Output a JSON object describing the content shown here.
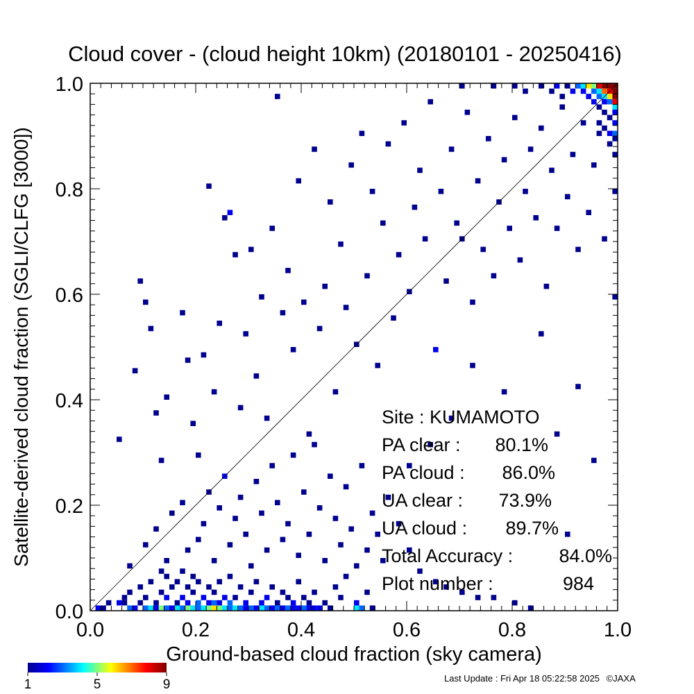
{
  "chart_data": {
    "type": "heatmap",
    "title": "Cloud cover - (cloud height 10km)  (20180101 - 20250416)",
    "xlabel": "Ground-based cloud fraction (sky camera)",
    "ylabel": "Satellite-derived cloud fraction (SGLI/CLFG [3000])",
    "xlim": [
      0.0,
      1.0
    ],
    "ylim": [
      0.0,
      1.0
    ],
    "xticks": [
      "0.0",
      "0.2",
      "0.4",
      "0.6",
      "0.8",
      "1.0"
    ],
    "yticks": [
      "0.0",
      "0.2",
      "0.4",
      "0.6",
      "0.8",
      "1.0"
    ],
    "bin_size": 0.01,
    "reference_line": "1:1 diagonal",
    "colorbar": {
      "min": 1,
      "max": 9,
      "tick_labels": [
        "1",
        "5",
        "9"
      ],
      "colors": [
        "#00008f",
        "#0000ff",
        "#00ffff",
        "#ffff00",
        "#ff0000",
        "#800000"
      ]
    },
    "cells": [
      [
        0.01,
        0.0,
        2
      ],
      [
        0.02,
        0.0,
        1
      ],
      [
        0.03,
        0.01,
        1
      ],
      [
        0.05,
        0.01,
        2
      ],
      [
        0.06,
        0.01,
        1
      ],
      [
        0.06,
        0.02,
        1
      ],
      [
        0.07,
        0.0,
        3
      ],
      [
        0.07,
        0.03,
        1
      ],
      [
        0.08,
        0.0,
        2
      ],
      [
        0.09,
        0.01,
        1
      ],
      [
        0.09,
        0.04,
        1
      ],
      [
        0.1,
        0.0,
        3
      ],
      [
        0.1,
        0.02,
        1
      ],
      [
        0.11,
        0.0,
        4
      ],
      [
        0.11,
        0.05,
        1
      ],
      [
        0.12,
        0.01,
        1
      ],
      [
        0.12,
        0.0,
        2
      ],
      [
        0.13,
        0.0,
        5
      ],
      [
        0.13,
        0.03,
        1
      ],
      [
        0.13,
        0.07,
        1
      ],
      [
        0.14,
        0.0,
        3
      ],
      [
        0.14,
        0.02,
        2
      ],
      [
        0.14,
        0.06,
        1
      ],
      [
        0.15,
        0.0,
        2
      ],
      [
        0.15,
        0.04,
        1
      ],
      [
        0.16,
        0.0,
        4
      ],
      [
        0.16,
        0.01,
        1
      ],
      [
        0.16,
        0.05,
        1
      ],
      [
        0.17,
        0.0,
        3
      ],
      [
        0.17,
        0.02,
        2
      ],
      [
        0.17,
        0.07,
        1
      ],
      [
        0.18,
        0.0,
        5
      ],
      [
        0.18,
        0.01,
        2
      ],
      [
        0.18,
        0.04,
        1
      ],
      [
        0.19,
        0.0,
        4
      ],
      [
        0.19,
        0.03,
        1
      ],
      [
        0.19,
        0.06,
        1
      ],
      [
        0.2,
        0.0,
        3
      ],
      [
        0.2,
        0.01,
        3
      ],
      [
        0.2,
        0.05,
        1
      ],
      [
        0.21,
        0.0,
        4
      ],
      [
        0.21,
        0.02,
        2
      ],
      [
        0.22,
        0.0,
        5
      ],
      [
        0.22,
        0.01,
        2
      ],
      [
        0.22,
        0.04,
        1
      ],
      [
        0.23,
        0.0,
        6
      ],
      [
        0.23,
        0.01,
        3
      ],
      [
        0.23,
        0.03,
        1
      ],
      [
        0.24,
        0.0,
        5
      ],
      [
        0.24,
        0.01,
        2
      ],
      [
        0.24,
        0.05,
        1
      ],
      [
        0.25,
        0.0,
        4
      ],
      [
        0.25,
        0.02,
        2
      ],
      [
        0.26,
        0.0,
        3
      ],
      [
        0.26,
        0.01,
        3
      ],
      [
        0.26,
        0.06,
        1
      ],
      [
        0.27,
        0.0,
        4
      ],
      [
        0.27,
        0.02,
        1
      ],
      [
        0.28,
        0.0,
        3
      ],
      [
        0.28,
        0.04,
        1
      ],
      [
        0.29,
        0.0,
        2
      ],
      [
        0.29,
        0.01,
        2
      ],
      [
        0.3,
        0.0,
        3
      ],
      [
        0.3,
        0.03,
        1
      ],
      [
        0.31,
        0.0,
        2
      ],
      [
        0.31,
        0.05,
        1
      ],
      [
        0.32,
        0.0,
        4
      ],
      [
        0.32,
        0.01,
        2
      ],
      [
        0.33,
        0.0,
        3
      ],
      [
        0.33,
        0.02,
        2
      ],
      [
        0.34,
        0.0,
        2
      ],
      [
        0.34,
        0.04,
        1
      ],
      [
        0.35,
        0.0,
        3
      ],
      [
        0.35,
        0.01,
        1
      ],
      [
        0.36,
        0.0,
        2
      ],
      [
        0.36,
        0.03,
        1
      ],
      [
        0.37,
        0.0,
        3
      ],
      [
        0.37,
        0.02,
        1
      ],
      [
        0.38,
        0.0,
        2
      ],
      [
        0.38,
        0.01,
        2
      ],
      [
        0.39,
        0.0,
        2
      ],
      [
        0.39,
        0.05,
        1
      ],
      [
        0.4,
        0.0,
        3
      ],
      [
        0.4,
        0.02,
        1
      ],
      [
        0.41,
        0.0,
        2
      ],
      [
        0.41,
        0.01,
        1
      ],
      [
        0.42,
        0.0,
        2
      ],
      [
        0.42,
        0.03,
        1
      ],
      [
        0.43,
        0.0,
        2
      ],
      [
        0.44,
        0.01,
        1
      ],
      [
        0.45,
        0.0,
        1
      ],
      [
        0.46,
        0.04,
        1
      ],
      [
        0.47,
        0.02,
        1
      ],
      [
        0.48,
        0.06,
        1
      ],
      [
        0.5,
        0.0,
        4
      ],
      [
        0.5,
        0.01,
        2
      ],
      [
        0.51,
        0.0,
        3
      ],
      [
        0.52,
        0.03,
        1
      ],
      [
        0.53,
        0.0,
        1
      ],
      [
        0.07,
        0.08,
        1
      ],
      [
        0.1,
        0.12,
        1
      ],
      [
        0.12,
        0.15,
        1
      ],
      [
        0.14,
        0.09,
        1
      ],
      [
        0.15,
        0.18,
        1
      ],
      [
        0.17,
        0.2,
        1
      ],
      [
        0.18,
        0.11,
        1
      ],
      [
        0.2,
        0.13,
        1
      ],
      [
        0.21,
        0.16,
        1
      ],
      [
        0.22,
        0.22,
        1
      ],
      [
        0.23,
        0.09,
        1
      ],
      [
        0.24,
        0.19,
        1
      ],
      [
        0.25,
        0.25,
        2
      ],
      [
        0.26,
        0.12,
        1
      ],
      [
        0.27,
        0.17,
        1
      ],
      [
        0.28,
        0.21,
        1
      ],
      [
        0.29,
        0.14,
        1
      ],
      [
        0.3,
        0.08,
        1
      ],
      [
        0.31,
        0.24,
        1
      ],
      [
        0.32,
        0.18,
        1
      ],
      [
        0.33,
        0.11,
        1
      ],
      [
        0.34,
        0.27,
        1
      ],
      [
        0.35,
        0.2,
        1
      ],
      [
        0.36,
        0.13,
        1
      ],
      [
        0.37,
        0.16,
        1
      ],
      [
        0.38,
        0.29,
        1
      ],
      [
        0.39,
        0.1,
        1
      ],
      [
        0.4,
        0.22,
        1
      ],
      [
        0.41,
        0.14,
        1
      ],
      [
        0.42,
        0.31,
        1
      ],
      [
        0.43,
        0.19,
        1
      ],
      [
        0.44,
        0.09,
        1
      ],
      [
        0.45,
        0.25,
        1
      ],
      [
        0.46,
        0.17,
        1
      ],
      [
        0.47,
        0.12,
        1
      ],
      [
        0.48,
        0.23,
        1
      ],
      [
        0.49,
        0.15,
        1
      ],
      [
        0.5,
        0.08,
        1
      ],
      [
        0.51,
        0.27,
        1
      ],
      [
        0.52,
        0.11,
        1
      ],
      [
        0.53,
        0.18,
        1
      ],
      [
        0.54,
        0.14,
        1
      ],
      [
        0.55,
        0.09,
        1
      ],
      [
        0.56,
        0.21,
        1
      ],
      [
        0.58,
        0.16,
        1
      ],
      [
        0.6,
        0.11,
        1
      ],
      [
        0.62,
        0.07,
        1
      ],
      [
        0.65,
        0.05,
        1
      ],
      [
        0.67,
        0.04,
        1
      ],
      [
        0.7,
        0.03,
        1
      ],
      [
        0.73,
        0.02,
        1
      ],
      [
        0.76,
        0.02,
        1
      ],
      [
        0.8,
        0.01,
        1
      ],
      [
        0.83,
        0.0,
        1
      ],
      [
        0.05,
        0.32,
        1
      ],
      [
        0.08,
        0.45,
        1
      ],
      [
        0.09,
        0.62,
        1
      ],
      [
        0.1,
        0.58,
        1
      ],
      [
        0.11,
        0.53,
        1
      ],
      [
        0.12,
        0.37,
        1
      ],
      [
        0.13,
        0.28,
        1
      ],
      [
        0.14,
        0.4,
        1
      ],
      [
        0.17,
        0.56,
        1
      ],
      [
        0.18,
        0.47,
        1
      ],
      [
        0.19,
        0.35,
        1
      ],
      [
        0.2,
        0.29,
        1
      ],
      [
        0.21,
        0.48,
        1
      ],
      [
        0.22,
        0.8,
        1
      ],
      [
        0.23,
        0.41,
        1
      ],
      [
        0.24,
        0.54,
        1
      ],
      [
        0.25,
        0.74,
        1
      ],
      [
        0.26,
        0.75,
        2
      ],
      [
        0.27,
        0.67,
        1
      ],
      [
        0.28,
        0.38,
        1
      ],
      [
        0.29,
        0.52,
        1
      ],
      [
        0.3,
        0.68,
        1
      ],
      [
        0.31,
        0.44,
        1
      ],
      [
        0.32,
        0.59,
        1
      ],
      [
        0.33,
        0.36,
        1
      ],
      [
        0.34,
        0.72,
        1
      ],
      [
        0.35,
        0.97,
        1
      ],
      [
        0.36,
        0.56,
        1
      ],
      [
        0.37,
        0.64,
        1
      ],
      [
        0.38,
        0.49,
        1
      ],
      [
        0.39,
        0.81,
        1
      ],
      [
        0.4,
        0.58,
        1
      ],
      [
        0.41,
        0.33,
        1
      ],
      [
        0.42,
        0.87,
        1
      ],
      [
        0.43,
        0.53,
        1
      ],
      [
        0.44,
        0.61,
        1
      ],
      [
        0.45,
        0.77,
        1
      ],
      [
        0.46,
        0.41,
        1
      ],
      [
        0.47,
        0.69,
        1
      ],
      [
        0.48,
        0.57,
        1
      ],
      [
        0.49,
        0.84,
        1
      ],
      [
        0.5,
        0.5,
        1
      ],
      [
        0.51,
        0.9,
        1
      ],
      [
        0.52,
        0.63,
        1
      ],
      [
        0.53,
        0.79,
        1
      ],
      [
        0.54,
        0.46,
        1
      ],
      [
        0.55,
        0.73,
        1
      ],
      [
        0.56,
        0.88,
        1
      ],
      [
        0.57,
        0.55,
        1
      ],
      [
        0.58,
        0.67,
        1
      ],
      [
        0.59,
        0.92,
        1
      ],
      [
        0.6,
        0.6,
        1
      ],
      [
        0.61,
        0.76,
        1
      ],
      [
        0.62,
        0.83,
        1
      ],
      [
        0.63,
        0.7,
        1
      ],
      [
        0.64,
        0.96,
        1
      ],
      [
        0.65,
        0.49,
        2
      ],
      [
        0.66,
        0.79,
        1
      ],
      [
        0.67,
        0.62,
        1
      ],
      [
        0.68,
        0.87,
        1
      ],
      [
        0.69,
        0.73,
        1
      ],
      [
        0.7,
        0.7,
        1
      ],
      [
        0.71,
        0.94,
        1
      ],
      [
        0.72,
        0.58,
        1
      ],
      [
        0.73,
        0.81,
        1
      ],
      [
        0.74,
        0.68,
        1
      ],
      [
        0.75,
        0.89,
        1
      ],
      [
        0.76,
        0.63,
        1
      ],
      [
        0.77,
        0.77,
        1
      ],
      [
        0.78,
        0.85,
        1
      ],
      [
        0.79,
        0.72,
        1
      ],
      [
        0.8,
        0.93,
        1
      ],
      [
        0.81,
        0.66,
        1
      ],
      [
        0.82,
        0.79,
        1
      ],
      [
        0.83,
        0.87,
        1
      ],
      [
        0.84,
        0.74,
        1
      ],
      [
        0.85,
        0.91,
        1
      ],
      [
        0.86,
        0.61,
        1
      ],
      [
        0.87,
        0.83,
        1
      ],
      [
        0.88,
        0.72,
        1
      ],
      [
        0.89,
        0.95,
        1
      ],
      [
        0.9,
        0.78,
        1
      ],
      [
        0.91,
        0.86,
        1
      ],
      [
        0.92,
        0.68,
        1
      ],
      [
        0.93,
        0.92,
        1
      ],
      [
        0.94,
        0.75,
        1
      ],
      [
        0.95,
        0.84,
        1
      ],
      [
        0.96,
        0.9,
        1
      ],
      [
        0.97,
        0.7,
        1
      ],
      [
        0.98,
        0.88,
        1
      ],
      [
        0.99,
        0.79,
        1
      ],
      [
        0.99,
        0.59,
        1
      ],
      [
        0.85,
        0.52,
        1
      ],
      [
        0.92,
        0.42,
        1
      ],
      [
        0.95,
        0.28,
        1
      ],
      [
        0.9,
        0.14,
        1
      ],
      [
        0.88,
        0.33,
        1
      ],
      [
        0.78,
        0.41,
        1
      ],
      [
        0.72,
        0.46,
        1
      ],
      [
        0.68,
        0.36,
        1
      ],
      [
        0.64,
        0.31,
        1
      ],
      [
        0.6,
        0.27,
        1
      ],
      [
        0.9,
        0.99,
        1
      ],
      [
        0.91,
        0.98,
        2
      ],
      [
        0.92,
        0.99,
        3
      ],
      [
        0.93,
        0.98,
        2
      ],
      [
        0.93,
        0.99,
        4
      ],
      [
        0.94,
        0.99,
        6
      ],
      [
        0.94,
        0.97,
        2
      ],
      [
        0.95,
        0.99,
        5
      ],
      [
        0.95,
        0.98,
        3
      ],
      [
        0.95,
        0.96,
        2
      ],
      [
        0.96,
        0.99,
        8
      ],
      [
        0.96,
        0.98,
        4
      ],
      [
        0.96,
        0.97,
        3
      ],
      [
        0.96,
        0.95,
        1
      ],
      [
        0.97,
        0.99,
        9
      ],
      [
        0.97,
        0.98,
        7
      ],
      [
        0.97,
        0.97,
        4
      ],
      [
        0.97,
        0.96,
        2
      ],
      [
        0.97,
        0.94,
        1
      ],
      [
        0.98,
        0.99,
        9
      ],
      [
        0.98,
        0.98,
        8
      ],
      [
        0.98,
        0.97,
        6
      ],
      [
        0.98,
        0.96,
        3
      ],
      [
        0.98,
        0.93,
        1
      ],
      [
        0.99,
        0.99,
        9
      ],
      [
        0.99,
        0.98,
        9
      ],
      [
        0.99,
        0.97,
        9
      ],
      [
        0.99,
        0.96,
        8
      ],
      [
        0.99,
        0.95,
        4
      ],
      [
        0.99,
        0.94,
        2
      ],
      [
        0.99,
        0.92,
        2
      ],
      [
        0.99,
        0.9,
        3
      ],
      [
        0.99,
        0.89,
        1
      ],
      [
        0.99,
        0.86,
        1
      ],
      [
        0.98,
        0.9,
        2
      ],
      [
        0.97,
        0.91,
        1
      ],
      [
        0.96,
        0.92,
        1
      ],
      [
        0.85,
        0.99,
        1
      ],
      [
        0.87,
        0.98,
        1
      ],
      [
        0.88,
        0.99,
        2
      ],
      [
        0.89,
        0.97,
        1
      ],
      [
        0.8,
        0.99,
        1
      ],
      [
        0.82,
        0.98,
        1
      ],
      [
        0.76,
        0.99,
        1
      ],
      [
        0.7,
        0.99,
        1
      ]
    ]
  },
  "stats": [
    {
      "label": "Site : KUMAMOTO",
      "value": ""
    },
    {
      "label": "PA clear :",
      "value": "80.1%"
    },
    {
      "label": "PA cloud :",
      "value": "86.0%"
    },
    {
      "label": "UA clear :",
      "value": "73.9%"
    },
    {
      "label": "UA cloud :",
      "value": "89.7%"
    },
    {
      "label": "Total Accuracy :",
      "value": "84.0%"
    },
    {
      "label": "Plot number :",
      "value": "984"
    }
  ],
  "footer": {
    "last_update": "Last Update : Fri Apr 18 05:22:58 2025",
    "copyright": "©JAXA"
  }
}
